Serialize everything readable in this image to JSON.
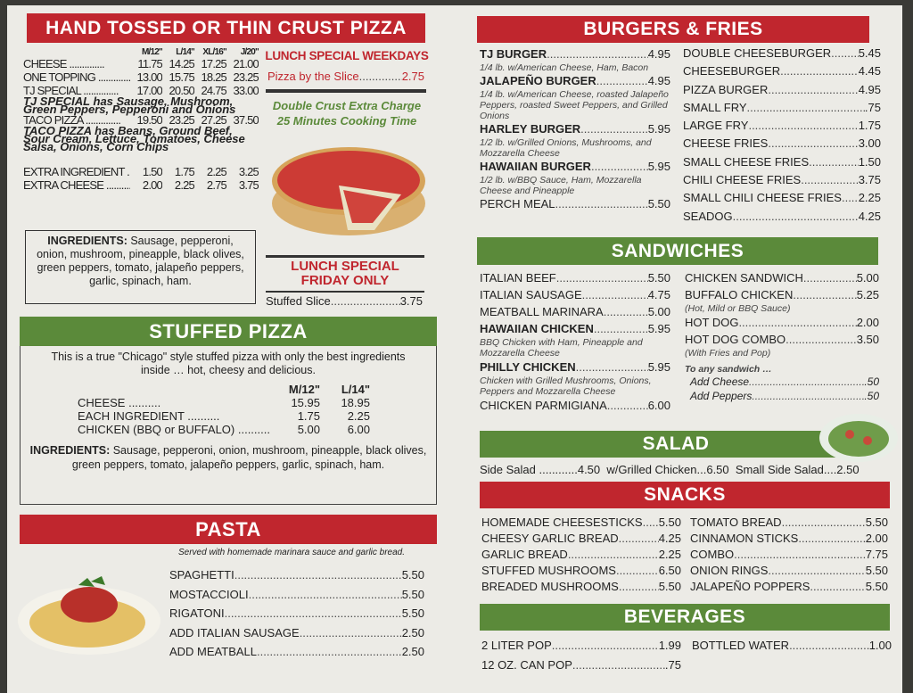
{
  "pizza": {
    "title": "HAND TOSSED OR THIN CRUST PIZZA",
    "sizes": [
      "M/12\"",
      "L/14\"",
      "XL/16\"",
      "J/20\""
    ],
    "rows": [
      {
        "name": "CHEESE",
        "prices": [
          "11.75",
          "14.25",
          "17.25",
          "21.00"
        ]
      },
      {
        "name": "ONE TOPPING",
        "prices": [
          "13.00",
          "15.75",
          "18.25",
          "23.25"
        ]
      },
      {
        "name": "TJ SPECIAL",
        "prices": [
          "17.00",
          "20.50",
          "24.75",
          "33.00"
        ],
        "note": "TJ SPECIAL has Sausage, Mushroom, Green Peppers, Pepperoni and Onions"
      },
      {
        "name": "TACO PIZZA",
        "prices": [
          "19.50",
          "23.25",
          "27.25",
          "37.50"
        ],
        "note": "TACO PIZZA has Beans, Ground Beef, Sour Cream, Lettuce, Tomatoes, Cheese Salsa, Onions, Corn Chips"
      },
      {
        "name": "EXTRA INGREDIENT",
        "prices": [
          "1.50",
          "1.75",
          "2.25",
          "3.25"
        ]
      },
      {
        "name": "EXTRA CHEESE",
        "prices": [
          "2.00",
          "2.25",
          "2.75",
          "3.75"
        ]
      }
    ],
    "ingredients_label": "INGREDIENTS:",
    "ingredients": "Sausage, pepperoni, onion, mushroom, pineapple, black olives, green peppers, tomato, jalapeño peppers, garlic, spinach, ham."
  },
  "lunch_weekdays": {
    "title": "LUNCH SPECIAL WEEKDAYS",
    "item": "Pizza by the Slice",
    "price": "2.75"
  },
  "double_crust": {
    "line1": "Double Crust  Extra Charge",
    "line2": "25 Minutes Cooking Time"
  },
  "lunch_friday": {
    "line1": "LUNCH SPECIAL",
    "line2": "FRIDAY ONLY",
    "item": "Stuffed Slice",
    "price": "3.75"
  },
  "stuffed": {
    "title": "STUFFED PIZZA",
    "intro": "This is a true \"Chicago\" style stuffed pizza with only the best ingredients inside … hot, cheesy and delicious.",
    "sizes": [
      "M/12\"",
      "L/14\""
    ],
    "rows": [
      {
        "name": "CHEESE",
        "prices": [
          "15.95",
          "18.95"
        ]
      },
      {
        "name": "EACH INGREDIENT",
        "prices": [
          "1.75",
          "2.25"
        ]
      },
      {
        "name": "CHICKEN (BBQ or BUFFALO)",
        "prices": [
          "5.00",
          "6.00"
        ]
      }
    ],
    "ingredients_label": "INGREDIENTS:",
    "ingredients": "Sausage, pepperoni, onion, mushroom, pineapple, black olives, green peppers, tomato, jalapeño peppers, garlic, spinach, ham."
  },
  "pasta": {
    "title": "PASTA",
    "note": "Served with homemade marinara sauce and garlic bread.",
    "items": [
      {
        "name": "SPAGHETTI",
        "price": "5.50"
      },
      {
        "name": "MOSTACCIOLI",
        "price": "5.50"
      },
      {
        "name": "RIGATONI",
        "price": "5.50"
      },
      {
        "name": "ADD ITALIAN SAUSAGE",
        "price": "2.50"
      },
      {
        "name": "ADD MEATBALL",
        "price": "2.50"
      }
    ]
  },
  "burgers": {
    "title": "BURGERS & FRIES",
    "left": [
      {
        "name": "TJ BURGER",
        "price": "4.95",
        "desc": "1/4 lb. w/American Cheese, Ham, Bacon"
      },
      {
        "name": "JALAPEÑO BURGER",
        "price": "4.95",
        "desc": "1/4 lb. w/American Cheese, roasted Jalapeño Peppers, roasted Sweet Peppers, and Grilled Onions"
      },
      {
        "name": "HARLEY BURGER",
        "price": "5.95",
        "desc": "1/2 lb. w/Grilled Onions, Mushrooms, and Mozzarella Cheese"
      },
      {
        "name": "HAWAIIAN BURGER",
        "price": "5.95",
        "desc": "1/2 lb. w/BBQ Sauce, Ham, Mozzarella Cheese and Pineapple"
      },
      {
        "name": "PERCH MEAL",
        "price": "5.50"
      }
    ],
    "right": [
      {
        "name": "DOUBLE CHEESEBURGER",
        "price": "5.45"
      },
      {
        "name": "CHEESEBURGER",
        "price": "4.45"
      },
      {
        "name": "PIZZA BURGER",
        "price": "4.95"
      },
      {
        "name": "SMALL FRY",
        "price": ".75"
      },
      {
        "name": "LARGE FRY",
        "price": "1.75"
      },
      {
        "name": "CHEESE FRIES",
        "price": "3.00"
      },
      {
        "name": "SMALL CHEESE FRIES",
        "price": "1.50"
      },
      {
        "name": "CHILI CHEESE FRIES",
        "price": "3.75"
      },
      {
        "name": "SMALL CHILI CHEESE FRIES",
        "price": "2.25"
      },
      {
        "name": "SEADOG",
        "price": "4.25"
      }
    ]
  },
  "sandwiches": {
    "title": "SANDWICHES",
    "left": [
      {
        "name": "ITALIAN BEEF",
        "price": "5.50"
      },
      {
        "name": "ITALIAN SAUSAGE",
        "price": "4.75"
      },
      {
        "name": "MEATBALL MARINARA",
        "price": "5.00"
      },
      {
        "name": "HAWAIIAN CHICKEN",
        "price": "5.95",
        "desc": "BBQ Chicken with Ham, Pineapple and Mozzarella Cheese"
      },
      {
        "name": "PHILLY CHICKEN",
        "price": "5.95",
        "desc": "Chicken with Grilled Mushrooms, Onions, Peppers and Mozzarella Cheese"
      },
      {
        "name": "CHICKEN PARMIGIANA",
        "price": "6.00"
      }
    ],
    "right": [
      {
        "name": "CHICKEN SANDWICH",
        "price": "5.00"
      },
      {
        "name": "BUFFALO CHICKEN",
        "price": "5.25",
        "desc": "(Hot, Mild or BBQ Sauce)"
      },
      {
        "name": "HOT DOG",
        "price": "2.00"
      },
      {
        "name": "HOT DOG COMBO",
        "price": "3.50",
        "desc": "(With Fries and Pop)"
      }
    ],
    "addons_title": "To any sandwich …",
    "addons": [
      {
        "name": "Add Cheese",
        "price": ".50"
      },
      {
        "name": "Add Peppers",
        "price": ".50"
      }
    ]
  },
  "salad": {
    "title": "SALAD",
    "line": "Side Salad ............4.50  w/Grilled Chicken...6.50  Small Side Salad....2.50"
  },
  "snacks": {
    "title": "SNACKS",
    "left": [
      {
        "name": "HOMEMADE CHEESESTICKS",
        "price": "5.50"
      },
      {
        "name": "CHEESY GARLIC BREAD",
        "price": "4.25"
      },
      {
        "name": "GARLIC BREAD",
        "price": "2.25"
      },
      {
        "name": "STUFFED MUSHROOMS",
        "price": "6.50"
      },
      {
        "name": "BREADED MUSHROOMS",
        "price": "5.50"
      }
    ],
    "right": [
      {
        "name": "TOMATO BREAD",
        "price": "5.50"
      },
      {
        "name": "CINNAMON STICKS",
        "price": "2.00"
      },
      {
        "name": "COMBO",
        "price": "7.75"
      },
      {
        "name": "ONION RINGS",
        "price": "5.50"
      },
      {
        "name": "JALAPEÑO POPPERS",
        "price": "5.50"
      }
    ]
  },
  "beverages": {
    "title": "BEVERAGES",
    "left": [
      {
        "name": "2 LITER POP",
        "price": "1.99"
      },
      {
        "name": "12 OZ. CAN POP",
        "price": ".75"
      }
    ],
    "right": [
      {
        "name": "BOTTLED WATER",
        "price": "1.00"
      }
    ]
  },
  "colors": {
    "red": "#c0262e",
    "green": "#5b8a3a",
    "paper": "#ecebe6"
  }
}
